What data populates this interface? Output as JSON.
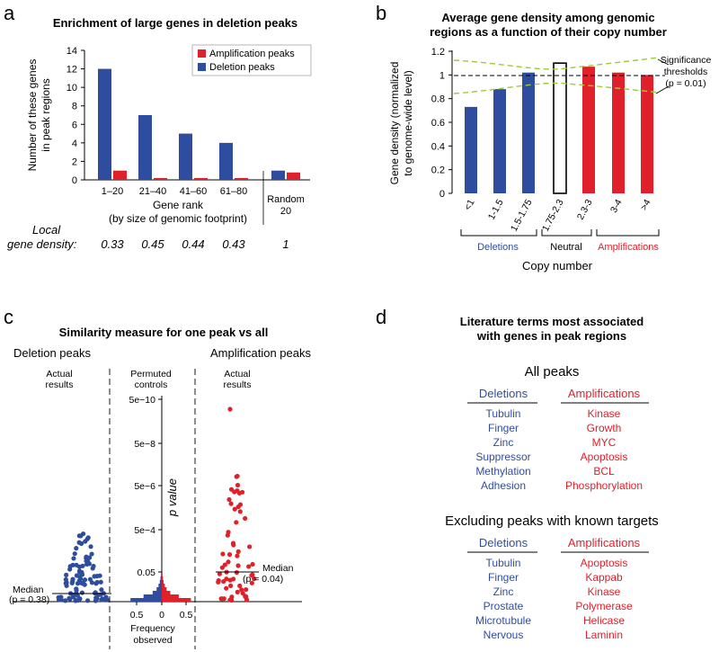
{
  "colors": {
    "blue": "#2f4d9e",
    "red": "#e0202a",
    "green": "#9acd32"
  },
  "chart_data": [
    {
      "panel": "a",
      "type": "bar",
      "title": "Enrichment of large genes in deletion peaks",
      "ylabel": [
        "Number of these genes",
        "in peak regions"
      ],
      "xlabel": [
        "Gene rank",
        "(by size of genomic footprint)"
      ],
      "ylim": [
        0,
        14
      ],
      "yticks": [
        "0",
        "2",
        "4",
        "6",
        "8",
        "10",
        "12",
        "14"
      ],
      "categories": [
        "1–20",
        "21–40",
        "41–60",
        "61–80",
        "Random 20"
      ],
      "series": [
        {
          "name": "Deletion peaks",
          "values": [
            12,
            7,
            5,
            4,
            1
          ]
        },
        {
          "name": "Amplification peaks",
          "values": [
            1,
            0.2,
            0.2,
            0.2,
            0.8
          ]
        }
      ],
      "random_label": [
        "Random",
        "20"
      ],
      "local_label": [
        "Local",
        "gene density:"
      ],
      "local_density": [
        "0.33",
        "0.45",
        "0.44",
        "0.43",
        "1"
      ]
    },
    {
      "panel": "b",
      "type": "bar",
      "title": [
        "Average gene density among genomic",
        "regions as a function of their copy number"
      ],
      "ylabel": [
        "Gene density (normalized",
        "to genome-wide level)"
      ],
      "xlabel": "Copy number",
      "ylim": [
        0,
        1.2
      ],
      "yticks": [
        "0",
        "0.2",
        "0.4",
        "0.6",
        "0.8",
        "1",
        "1.2"
      ],
      "categories": [
        "<1",
        "1-1.5",
        "1.5-1.75",
        "1.75-2.3",
        "2.3-3",
        "3-4",
        ">4"
      ],
      "values": [
        0.73,
        0.88,
        1.02,
        1.1,
        1.07,
        1.02,
        1.0
      ],
      "groups": [
        "Deletions",
        "Neutral",
        "Amplifications"
      ],
      "annotation": [
        "Significance",
        "thresholds",
        "(p = 0.01)"
      ]
    },
    {
      "panel": "c",
      "type": "scatter",
      "title": "Similarity measure for one peak vs all",
      "left_header": "Deletion peaks",
      "right_header": "Amplification peaks",
      "actual": [
        "Actual",
        "results"
      ],
      "permuted": [
        "Permuted",
        "controls"
      ],
      "yaxis_label": "p value",
      "yticks": [
        "5e−10",
        "5e−8",
        "5e−6",
        "5e−4",
        "0.05"
      ],
      "xticks": [
        "0.5",
        "0",
        "0.5"
      ],
      "xlabel": [
        "Frequency",
        "observed"
      ],
      "median_left": [
        "Median",
        "(p = 0.38)"
      ],
      "median_right": [
        "Median",
        "(p = 0.04)"
      ]
    }
  ],
  "panel_d": {
    "title": [
      "Literature terms most associated",
      "with genes in peak regions"
    ],
    "section1": {
      "title": "All peaks",
      "deletions_header": "Deletions",
      "amplifications_header": "Amplifications",
      "deletions": [
        "Tubulin",
        "Finger",
        "Zinc",
        "Suppressor",
        "Methylation",
        "Adhesion"
      ],
      "amplifications": [
        "Kinase",
        "Growth",
        "MYC",
        "Apoptosis",
        "BCL",
        "Phosphorylation"
      ]
    },
    "section2": {
      "title": "Excluding peaks with known targets",
      "deletions_header": "Deletions",
      "amplifications_header": "Amplifications",
      "deletions": [
        "Tubulin",
        "Finger",
        "Zinc",
        "Prostate",
        "Microtubule",
        "Nervous"
      ],
      "amplifications": [
        "Apoptosis",
        "Kappab",
        "Kinase",
        "Polymerase",
        "Helicase",
        "Laminin"
      ]
    }
  },
  "labels": {
    "a": "a",
    "b": "b",
    "c": "c",
    "d": "d"
  }
}
